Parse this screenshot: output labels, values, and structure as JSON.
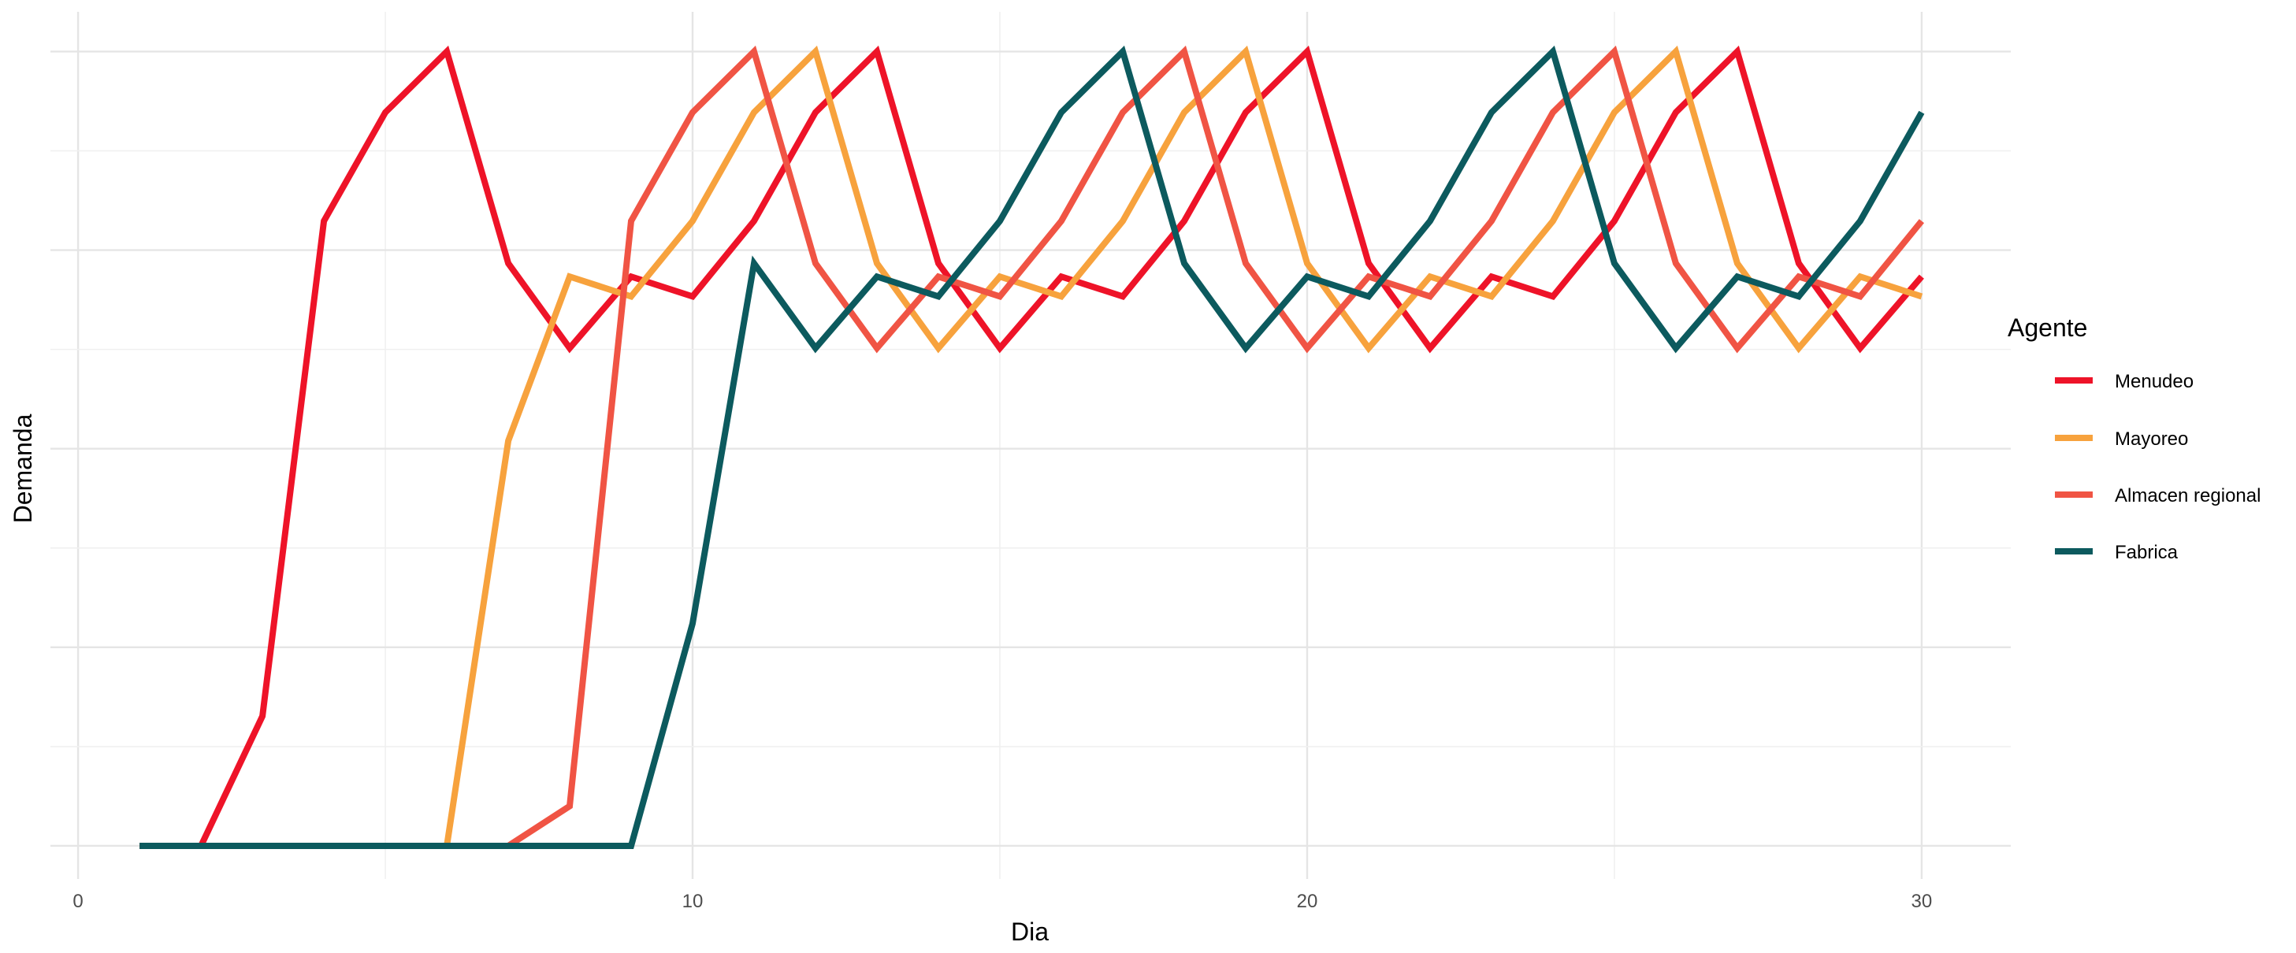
{
  "chart_data": {
    "type": "line",
    "title": "",
    "xlabel": "Dia",
    "ylabel": "Demanda",
    "x": [
      1,
      2,
      3,
      4,
      5,
      6,
      7,
      8,
      9,
      10,
      11,
      12,
      13,
      14,
      15,
      16,
      17,
      18,
      19,
      20,
      21,
      22,
      23,
      24,
      25,
      26,
      27,
      28,
      29,
      30
    ],
    "xlim": [
      -0.45,
      31.45
    ],
    "ylim": [
      -0.25,
      6.3
    ],
    "x_ticks": [
      0,
      10,
      20,
      30
    ],
    "x_tick_labels": [
      "0",
      "10",
      "20",
      "30"
    ],
    "y_gridlines": [
      0,
      0.75,
      1.5,
      2.25,
      3,
      3.75,
      4.5,
      5.25,
      6
    ],
    "y_tick_labels_shown": false,
    "grid": true,
    "legend_title": "Agente",
    "legend_position": "right",
    "series": [
      {
        "name": "Menudeo",
        "color": "#EE1328",
        "values": [
          0,
          0,
          0.98,
          4.72,
          5.54,
          6.0,
          4.4,
          3.76,
          4.3,
          4.15,
          4.72,
          5.54,
          6.0,
          4.4,
          3.76,
          4.3,
          4.15,
          4.72,
          5.54,
          6.0,
          4.4,
          3.76,
          4.3,
          4.15,
          4.72,
          5.54,
          6.0,
          4.4,
          3.76,
          4.3
        ]
      },
      {
        "name": "Mayoreo",
        "color": "#F7A23D",
        "values": [
          0,
          0,
          0,
          0,
          0,
          0,
          3.06,
          4.3,
          4.15,
          4.72,
          5.54,
          6.0,
          4.4,
          3.76,
          4.3,
          4.15,
          4.72,
          5.54,
          6.0,
          4.4,
          3.76,
          4.3,
          4.15,
          4.72,
          5.54,
          6.0,
          4.4,
          3.76,
          4.3,
          4.15
        ]
      },
      {
        "name": "Almacen regional",
        "color": "#F05444",
        "values": [
          0,
          0,
          0,
          0,
          0,
          0,
          0,
          0.3,
          4.72,
          5.54,
          6.0,
          4.4,
          3.76,
          4.3,
          4.15,
          4.72,
          5.54,
          6.0,
          4.4,
          3.76,
          4.3,
          4.15,
          4.72,
          5.54,
          6.0,
          4.4,
          3.76,
          4.3,
          4.15,
          4.72
        ]
      },
      {
        "name": "Fabrica",
        "color": "#0C5A5E",
        "values": [
          0,
          0,
          0,
          0,
          0,
          0,
          0,
          0,
          0,
          1.68,
          4.4,
          3.76,
          4.3,
          4.15,
          4.72,
          5.54,
          6.0,
          4.4,
          3.76,
          4.3,
          4.15,
          4.72,
          5.54,
          6.0,
          4.4,
          3.76,
          4.3,
          4.15,
          4.72,
          5.54
        ]
      }
    ]
  },
  "colors": {
    "background": "#ffffff",
    "grid_major": "#e5e5e5",
    "grid_minor": "#f0f0f0",
    "tick_text": "#4d4d4d"
  }
}
